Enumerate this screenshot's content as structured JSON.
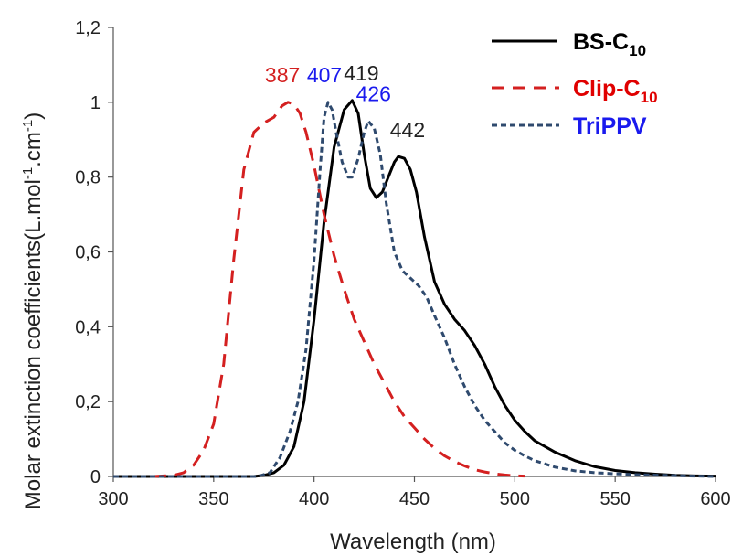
{
  "chart_data": {
    "type": "line",
    "title": "",
    "xlabel": "Wavelength (nm)",
    "ylabel": "Molar extinction coefficients(L.mol",
    "ylabel_sup1": "-1",
    "ylabel_mid": ".cm",
    "ylabel_sup2": "-1",
    "ylabel_end": ")",
    "xlim": [
      300,
      600
    ],
    "ylim": [
      0,
      1.2
    ],
    "x_ticks": [
      300,
      350,
      400,
      450,
      500,
      550,
      600
    ],
    "y_ticks": [
      0,
      0.2,
      0.4,
      0.6,
      0.8,
      1,
      1.2
    ],
    "x_tick_labels": [
      "300",
      "350",
      "400",
      "450",
      "500",
      "550",
      "600"
    ],
    "y_tick_labels": [
      "0",
      "0,2",
      "0,4",
      "0,6",
      "0,8",
      "1",
      "1,2"
    ],
    "grid": false,
    "legend_position": "top-right",
    "series": [
      {
        "name": "BS-C10",
        "legend_main": "BS-C",
        "legend_sub": "10",
        "color": "#000000",
        "dash": "solid",
        "points": [
          [
            300,
            0
          ],
          [
            370,
            0
          ],
          [
            375,
            0.003
          ],
          [
            380,
            0.01
          ],
          [
            385,
            0.03
          ],
          [
            390,
            0.08
          ],
          [
            395,
            0.2
          ],
          [
            400,
            0.42
          ],
          [
            405,
            0.68
          ],
          [
            410,
            0.88
          ],
          [
            415,
            0.98
          ],
          [
            419,
            1.005
          ],
          [
            422,
            0.97
          ],
          [
            425,
            0.86
          ],
          [
            428,
            0.77
          ],
          [
            431,
            0.745
          ],
          [
            434,
            0.76
          ],
          [
            437,
            0.8
          ],
          [
            440,
            0.84
          ],
          [
            442,
            0.855
          ],
          [
            445,
            0.85
          ],
          [
            448,
            0.82
          ],
          [
            451,
            0.76
          ],
          [
            455,
            0.64
          ],
          [
            460,
            0.52
          ],
          [
            465,
            0.46
          ],
          [
            470,
            0.42
          ],
          [
            475,
            0.39
          ],
          [
            480,
            0.35
          ],
          [
            485,
            0.3
          ],
          [
            490,
            0.24
          ],
          [
            495,
            0.19
          ],
          [
            500,
            0.15
          ],
          [
            505,
            0.12
          ],
          [
            510,
            0.095
          ],
          [
            520,
            0.065
          ],
          [
            530,
            0.042
          ],
          [
            540,
            0.026
          ],
          [
            550,
            0.016
          ],
          [
            560,
            0.01
          ],
          [
            570,
            0.006
          ],
          [
            580,
            0.003
          ],
          [
            590,
            0.0015
          ],
          [
            600,
            0.001
          ]
        ]
      },
      {
        "name": "Clip-C10",
        "legend_main": "Clip-C",
        "legend_sub": "10",
        "color": "#d42020",
        "dash": "long",
        "points": [
          [
            320,
            0
          ],
          [
            330,
            0.003
          ],
          [
            335,
            0.01
          ],
          [
            340,
            0.03
          ],
          [
            345,
            0.07
          ],
          [
            350,
            0.14
          ],
          [
            355,
            0.3
          ],
          [
            360,
            0.58
          ],
          [
            365,
            0.82
          ],
          [
            370,
            0.92
          ],
          [
            375,
            0.945
          ],
          [
            380,
            0.96
          ],
          [
            384,
            0.99
          ],
          [
            387,
            1.0
          ],
          [
            390,
            0.995
          ],
          [
            393,
            0.97
          ],
          [
            396,
            0.92
          ],
          [
            400,
            0.83
          ],
          [
            405,
            0.7
          ],
          [
            410,
            0.59
          ],
          [
            415,
            0.5
          ],
          [
            420,
            0.42
          ],
          [
            425,
            0.36
          ],
          [
            430,
            0.3
          ],
          [
            435,
            0.25
          ],
          [
            440,
            0.2
          ],
          [
            445,
            0.16
          ],
          [
            450,
            0.13
          ],
          [
            455,
            0.1
          ],
          [
            460,
            0.075
          ],
          [
            465,
            0.055
          ],
          [
            470,
            0.04
          ],
          [
            475,
            0.028
          ],
          [
            480,
            0.018
          ],
          [
            485,
            0.012
          ],
          [
            490,
            0.007
          ],
          [
            495,
            0.004
          ],
          [
            500,
            0.002
          ],
          [
            505,
            0.001
          ]
        ]
      },
      {
        "name": "TriPPV",
        "legend_main": "TriPPV",
        "legend_sub": "",
        "color": "#2f4a6e",
        "dash": "short",
        "points": [
          [
            300,
            0
          ],
          [
            372,
            0
          ],
          [
            378,
            0.01
          ],
          [
            383,
            0.05
          ],
          [
            388,
            0.12
          ],
          [
            392,
            0.2
          ],
          [
            396,
            0.34
          ],
          [
            400,
            0.58
          ],
          [
            403,
            0.82
          ],
          [
            405,
            0.96
          ],
          [
            407,
            1.0
          ],
          [
            409,
            0.98
          ],
          [
            411,
            0.92
          ],
          [
            414,
            0.84
          ],
          [
            417,
            0.8
          ],
          [
            419,
            0.8
          ],
          [
            422,
            0.85
          ],
          [
            425,
            0.92
          ],
          [
            427,
            0.95
          ],
          [
            430,
            0.93
          ],
          [
            433,
            0.86
          ],
          [
            436,
            0.73
          ],
          [
            440,
            0.6
          ],
          [
            444,
            0.55
          ],
          [
            448,
            0.53
          ],
          [
            452,
            0.51
          ],
          [
            456,
            0.48
          ],
          [
            460,
            0.43
          ],
          [
            465,
            0.37
          ],
          [
            470,
            0.3
          ],
          [
            475,
            0.24
          ],
          [
            480,
            0.19
          ],
          [
            485,
            0.15
          ],
          [
            490,
            0.12
          ],
          [
            495,
            0.09
          ],
          [
            500,
            0.07
          ],
          [
            505,
            0.055
          ],
          [
            510,
            0.042
          ],
          [
            520,
            0.025
          ],
          [
            530,
            0.015
          ],
          [
            540,
            0.01
          ],
          [
            550,
            0.007
          ],
          [
            560,
            0.005
          ],
          [
            575,
            0.003
          ],
          [
            590,
            0.001
          ],
          [
            600,
            0
          ]
        ]
      }
    ],
    "annotations": [
      {
        "text": "387",
        "x": 387,
        "y": 1.0,
        "color": "#d42020"
      },
      {
        "text": "407",
        "x": 407,
        "y": 1.0,
        "color": "#1a1aee"
      },
      {
        "text": "419",
        "x": 419,
        "y": 1.005,
        "color": "#222222"
      },
      {
        "text": "426",
        "x": 426,
        "y": 0.95,
        "color": "#1a1aee"
      },
      {
        "text": "442",
        "x": 442,
        "y": 0.855,
        "color": "#222222"
      }
    ],
    "legend_colors": [
      "#000000",
      "#e00000",
      "#1a1aee"
    ]
  }
}
